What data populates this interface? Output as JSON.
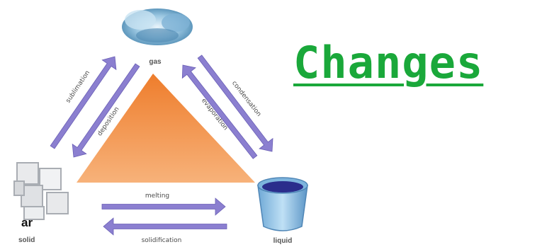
{
  "title": "Changes",
  "fragment_text": "ar",
  "states": {
    "gas": "gas",
    "solid": "solid",
    "liquid": "liquid"
  },
  "transitions": {
    "sublimation": "sublimation",
    "deposition": "deposition",
    "condensation": "condensation",
    "evaporation": "evaporation",
    "melting": "melting",
    "solidification": "solidification"
  },
  "colors": {
    "title": "#1aa83a",
    "triangle": "#f08a3c",
    "arrow": "#8b7fd0",
    "water": "#2a2d8c"
  }
}
